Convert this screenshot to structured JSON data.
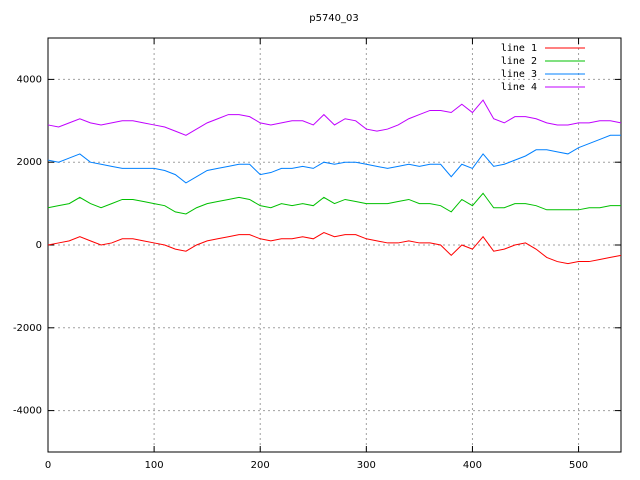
{
  "chart_data": {
    "type": "line",
    "title": "p5740_03",
    "x": [
      0,
      10,
      20,
      30,
      40,
      50,
      60,
      70,
      80,
      90,
      100,
      110,
      120,
      130,
      140,
      150,
      160,
      170,
      180,
      190,
      200,
      210,
      220,
      230,
      240,
      250,
      260,
      270,
      280,
      290,
      300,
      310,
      320,
      330,
      340,
      350,
      360,
      370,
      380,
      390,
      400,
      410,
      420,
      430,
      440,
      450,
      460,
      470,
      480,
      490,
      500,
      510,
      520,
      530,
      540
    ],
    "series": [
      {
        "name": "line 1",
        "color": "#ff0000",
        "values": [
          0,
          50,
          100,
          200,
          100,
          0,
          50,
          150,
          150,
          100,
          50,
          0,
          -100,
          -150,
          0,
          100,
          150,
          200,
          250,
          250,
          150,
          100,
          150,
          150,
          200,
          150,
          300,
          200,
          250,
          250,
          150,
          100,
          50,
          50,
          100,
          50,
          50,
          0,
          -250,
          0,
          -100,
          200,
          -150,
          -100,
          0,
          50,
          -100,
          -300,
          -400,
          -450,
          -400,
          -400,
          -350,
          -300,
          -250
        ]
      },
      {
        "name": "line 2",
        "color": "#00c000",
        "values": [
          900,
          950,
          1000,
          1150,
          1000,
          900,
          1000,
          1100,
          1100,
          1050,
          1000,
          950,
          800,
          750,
          900,
          1000,
          1050,
          1100,
          1150,
          1100,
          950,
          900,
          1000,
          950,
          1000,
          950,
          1150,
          1000,
          1100,
          1050,
          1000,
          1000,
          1000,
          1050,
          1100,
          1000,
          1000,
          950,
          800,
          1100,
          950,
          1250,
          900,
          900,
          1000,
          1000,
          950,
          850,
          850,
          850,
          850,
          900,
          900,
          950,
          950
        ]
      },
      {
        "name": "line 3",
        "color": "#0080ff",
        "values": [
          2050,
          2000,
          2100,
          2200,
          2000,
          1950,
          1900,
          1850,
          1850,
          1850,
          1850,
          1800,
          1700,
          1500,
          1650,
          1800,
          1850,
          1900,
          1950,
          1950,
          1700,
          1750,
          1850,
          1850,
          1900,
          1850,
          2000,
          1950,
          2000,
          2000,
          1950,
          1900,
          1850,
          1900,
          1950,
          1900,
          1950,
          1950,
          1650,
          1950,
          1850,
          2200,
          1900,
          1950,
          2050,
          2150,
          2300,
          2300,
          2250,
          2200,
          2350,
          2450,
          2550,
          2650,
          2650
        ]
      },
      {
        "name": "line 4",
        "color": "#c000ff",
        "values": [
          2900,
          2850,
          2950,
          3050,
          2950,
          2900,
          2950,
          3000,
          3000,
          2950,
          2900,
          2850,
          2750,
          2650,
          2800,
          2950,
          3050,
          3150,
          3150,
          3100,
          2950,
          2900,
          2950,
          3000,
          3000,
          2900,
          3150,
          2900,
          3050,
          3000,
          2800,
          2750,
          2800,
          2900,
          3050,
          3150,
          3250,
          3250,
          3200,
          3400,
          3200,
          3500,
          3050,
          2950,
          3100,
          3100,
          3050,
          2950,
          2900,
          2900,
          2950,
          2950,
          3000,
          3000,
          2950
        ]
      }
    ],
    "xlim": [
      0,
      540
    ],
    "xticks": [
      0,
      100,
      200,
      300,
      400,
      500
    ],
    "ylim": [
      -5000,
      5000
    ],
    "yticks": [
      -4000,
      -2000,
      0,
      2000,
      4000
    ],
    "grid": true,
    "legend": "top-right"
  }
}
